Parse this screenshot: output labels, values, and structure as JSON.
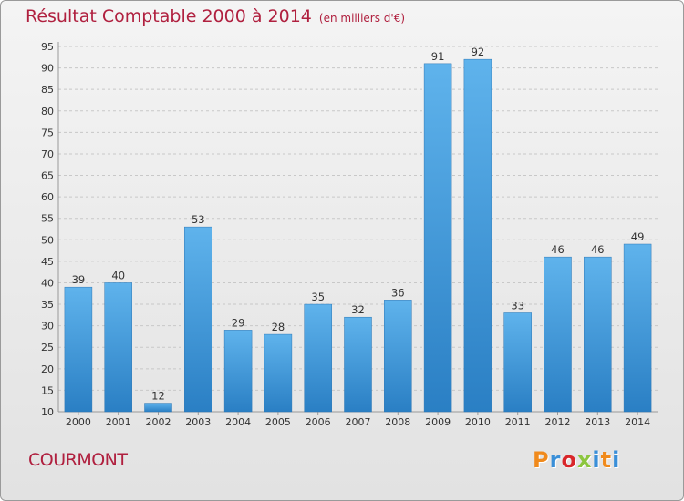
{
  "chart_data": {
    "type": "bar",
    "title": "Résultat Comptable 2000 à 2014",
    "subtitle": "(en milliers d'€)",
    "categories": [
      "2000",
      "2001",
      "2002",
      "2003",
      "2004",
      "2005",
      "2006",
      "2007",
      "2008",
      "2009",
      "2010",
      "2011",
      "2012",
      "2013",
      "2014"
    ],
    "values": [
      39,
      40,
      12,
      53,
      29,
      28,
      35,
      32,
      36,
      91,
      92,
      33,
      46,
      46,
      49
    ],
    "ylim": [
      10,
      95
    ],
    "yticks": [
      10,
      15,
      20,
      25,
      30,
      35,
      40,
      45,
      50,
      55,
      60,
      65,
      70,
      75,
      80,
      85,
      90,
      95
    ],
    "grid": true,
    "bar_color": "#4a9fe0"
  },
  "footer": {
    "commune": "COURMONT",
    "logo": "Proxiti"
  },
  "colors": {
    "title": "#b0203f",
    "logo_letters": [
      "#f08a1c",
      "#3a8fd8",
      "#d9262a",
      "#8cc63f",
      "#3a8fd8",
      "#f08a1c",
      "#3a8fd8"
    ]
  }
}
